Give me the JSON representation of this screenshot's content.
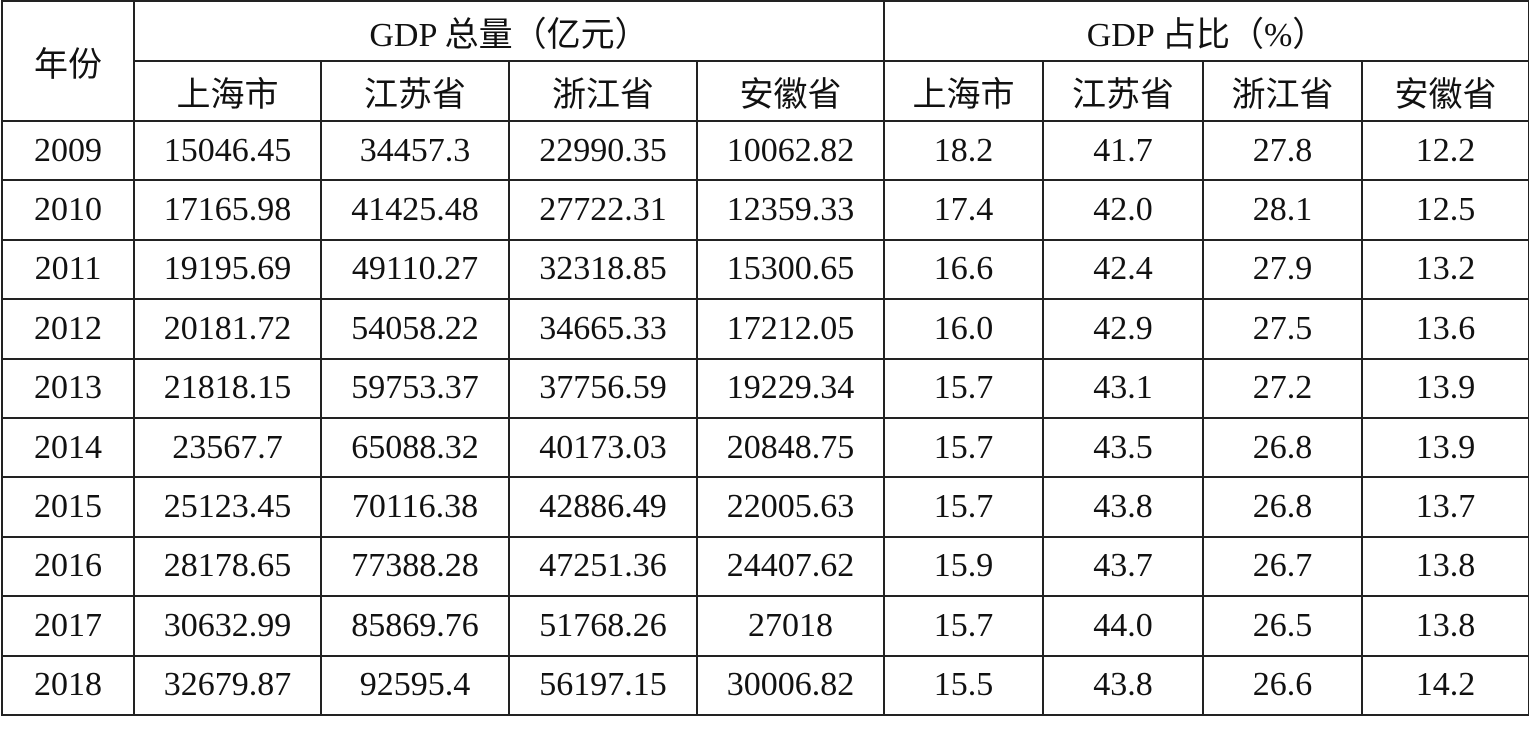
{
  "table": {
    "corner": "年份",
    "groups": [
      "GDP 总量（亿元）",
      "GDP 占比（%）"
    ],
    "columns": [
      "上海市",
      "江苏省",
      "浙江省",
      "安徽省",
      "上海市",
      "江苏省",
      "浙江省",
      "安徽省"
    ],
    "rows": [
      [
        "2009",
        "15046.45",
        "34457.3",
        "22990.35",
        "10062.82",
        "18.2",
        "41.7",
        "27.8",
        "12.2"
      ],
      [
        "2010",
        "17165.98",
        "41425.48",
        "27722.31",
        "12359.33",
        "17.4",
        "42.0",
        "28.1",
        "12.5"
      ],
      [
        "2011",
        "19195.69",
        "49110.27",
        "32318.85",
        "15300.65",
        "16.6",
        "42.4",
        "27.9",
        "13.2"
      ],
      [
        "2012",
        "20181.72",
        "54058.22",
        "34665.33",
        "17212.05",
        "16.0",
        "42.9",
        "27.5",
        "13.6"
      ],
      [
        "2013",
        "21818.15",
        "59753.37",
        "37756.59",
        "19229.34",
        "15.7",
        "43.1",
        "27.2",
        "13.9"
      ],
      [
        "2014",
        "23567.7",
        "65088.32",
        "40173.03",
        "20848.75",
        "15.7",
        "43.5",
        "26.8",
        "13.9"
      ],
      [
        "2015",
        "25123.45",
        "70116.38",
        "42886.49",
        "22005.63",
        "15.7",
        "43.8",
        "26.8",
        "13.7"
      ],
      [
        "2016",
        "28178.65",
        "77388.28",
        "47251.36",
        "24407.62",
        "15.9",
        "43.7",
        "26.7",
        "13.8"
      ],
      [
        "2017",
        "30632.99",
        "85869.76",
        "51768.26",
        "27018",
        "15.7",
        "44.0",
        "26.5",
        "13.8"
      ],
      [
        "2018",
        "32679.87",
        "92595.4",
        "56197.15",
        "30006.82",
        "15.5",
        "43.8",
        "26.6",
        "14.2"
      ]
    ]
  }
}
